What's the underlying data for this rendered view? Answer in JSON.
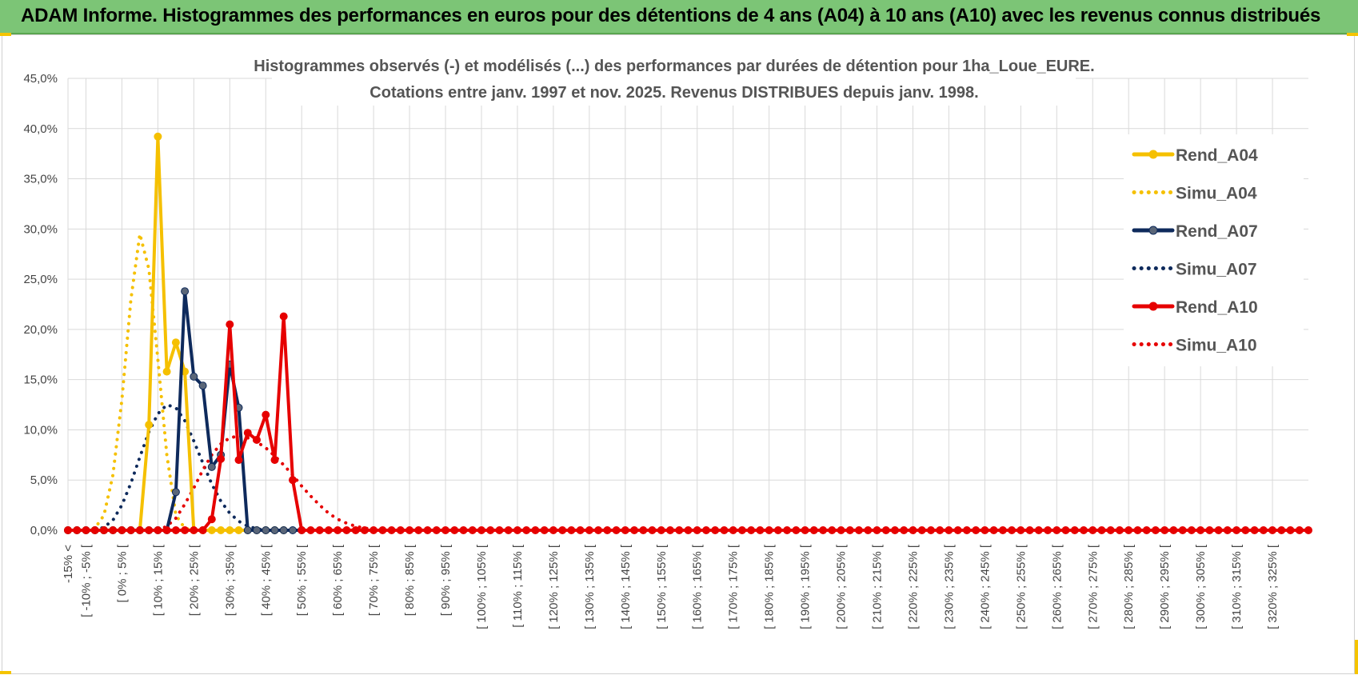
{
  "header": {
    "title": "ADAM Informe. Histogrammes des performances en euros pour des détentions de 4 ans (A04) à 10 ans (A10) avec les revenus connus distribués"
  },
  "chart_data": {
    "type": "line",
    "title_line1": "Histogrammes observés (-) et modélisés (...) des performances par durées de détention pour 1ha_Loue_EURE.",
    "title_line2": "Cotations entre janv. 1997 et nov. 2025. Revenus DISTRIBUES depuis janv. 1998.",
    "ylim": [
      0,
      45
    ],
    "yticks": [
      0,
      5,
      10,
      15,
      20,
      25,
      30,
      35,
      40,
      45
    ],
    "ytick_labels": [
      "0,0%",
      "5,0%",
      "10,0%",
      "15,0%",
      "20,0%",
      "25,0%",
      "30,0%",
      "35,0%",
      "40,0%",
      "45,0%"
    ],
    "x_positions": [
      -15,
      -12.5,
      -10,
      -7.5,
      -5,
      -2.5,
      0,
      2.5,
      5,
      7.5,
      10,
      12.5,
      15,
      17.5,
      20,
      22.5,
      25,
      27.5,
      30,
      32.5,
      35,
      37.5,
      40,
      42.5,
      45,
      47.5,
      50,
      52.5,
      55,
      57.5,
      60,
      62.5,
      65,
      67.5,
      70,
      72.5,
      75,
      77.5,
      80,
      82.5,
      85,
      87.5,
      90,
      92.5,
      95,
      97.5,
      100,
      102.5,
      105,
      107.5,
      110,
      112.5,
      115,
      117.5,
      120,
      122.5,
      125,
      127.5,
      130,
      132.5,
      135,
      137.5,
      140,
      142.5,
      145,
      147.5,
      150,
      152.5,
      155,
      157.5,
      160,
      162.5,
      165,
      167.5,
      170,
      172.5,
      175,
      177.5,
      180,
      182.5,
      185,
      187.5,
      190,
      192.5,
      195,
      197.5,
      200,
      202.5,
      205,
      207.5,
      210,
      212.5,
      215,
      217.5,
      220,
      222.5,
      225,
      227.5,
      230,
      232.5,
      235,
      237.5,
      240,
      242.5,
      245,
      247.5,
      250,
      252.5,
      255,
      257.5,
      260,
      262.5,
      265,
      267.5,
      270,
      272.5,
      275,
      277.5,
      280,
      282.5,
      285,
      287.5,
      290,
      292.5,
      295,
      297.5,
      300,
      302.5,
      305,
      307.5,
      310,
      312.5,
      315,
      317.5,
      320,
      322.5,
      325,
      327.5,
      330
    ],
    "x_labels": [
      "-15% <",
      "[ -10% ; -5% [",
      "[ 0% ; 5% [",
      "[ 10% ; 15% [",
      "[ 20% ; 25% [",
      "[ 30% ; 35% [",
      "[ 40% ; 45% [",
      "[ 50% ; 55% [",
      "[ 60% ; 65% [",
      "[ 70% ; 75% [",
      "[ 80% ; 85% [",
      "[ 90% ; 95% [",
      "[ 100% ; 105% [",
      "[ 110% ; 115% [",
      "[ 120% ; 125% [",
      "[ 130% ; 135% [",
      "[ 140% ; 145% [",
      "[ 150% ; 155% [",
      "[ 160% ; 165% [",
      "[ 170% ; 175% [",
      "[ 180% ; 185% [",
      "[ 190% ; 195% [",
      "[ 200% ; 205% [",
      "[ 210% ; 215% [",
      "[ 220% ; 225% [",
      "[ 230% ; 235% [",
      "[ 240% ; 245% [",
      "[ 250% ; 255% [",
      "[ 260% ; 265% [",
      "[ 270% ; 275% [",
      "[ 280% ; 285% [",
      "[ 290% ; 295% [",
      "[ 300% ; 305% [",
      "[ 310% ; 315% [",
      "[ 320% ; 325% ["
    ],
    "x_label_positions": [
      -15,
      -10,
      0,
      10,
      20,
      30,
      40,
      50,
      60,
      70,
      80,
      90,
      100,
      110,
      120,
      130,
      140,
      150,
      160,
      170,
      180,
      190,
      200,
      210,
      220,
      230,
      240,
      250,
      260,
      270,
      280,
      290,
      300,
      310,
      320
    ],
    "series": [
      {
        "name": "Rend_A04",
        "color": "#f5c000",
        "style": "solid",
        "marker": true,
        "points": [
          [
            -15,
            0
          ],
          [
            -12.5,
            0
          ],
          [
            -10,
            0
          ],
          [
            -7.5,
            0
          ],
          [
            -5,
            0
          ],
          [
            -2.5,
            0
          ],
          [
            0,
            0
          ],
          [
            2.5,
            0
          ],
          [
            5,
            0
          ],
          [
            7.5,
            10.5
          ],
          [
            10,
            39.2
          ],
          [
            12.5,
            15.8
          ],
          [
            15,
            18.7
          ],
          [
            17.5,
            15.8
          ],
          [
            20,
            0
          ],
          [
            22.5,
            0
          ],
          [
            25,
            0
          ],
          [
            27.5,
            0
          ],
          [
            30,
            0
          ],
          [
            32.5,
            0
          ],
          [
            35,
            0
          ],
          [
            37.5,
            0
          ],
          [
            40,
            0
          ],
          [
            42.5,
            0
          ],
          [
            45,
            0
          ]
        ]
      },
      {
        "name": "Simu_A04",
        "color": "#f5c000",
        "style": "dotted",
        "marker": false,
        "points": [
          [
            -10,
            0
          ],
          [
            -7.5,
            0.2
          ],
          [
            -5,
            1.5
          ],
          [
            -2.5,
            5.5
          ],
          [
            0,
            13
          ],
          [
            2.5,
            23
          ],
          [
            5,
            29.5
          ],
          [
            7.5,
            26
          ],
          [
            10,
            17
          ],
          [
            12.5,
            7.5
          ],
          [
            15,
            1.5
          ],
          [
            17.5,
            0.2
          ],
          [
            20,
            0
          ]
        ]
      },
      {
        "name": "Rend_A07",
        "color": "#0e2a5c",
        "style": "solid",
        "marker": true,
        "points": [
          [
            -15,
            0
          ],
          [
            -12.5,
            0
          ],
          [
            -10,
            0
          ],
          [
            -7.5,
            0
          ],
          [
            -5,
            0
          ],
          [
            -2.5,
            0
          ],
          [
            0,
            0
          ],
          [
            2.5,
            0
          ],
          [
            5,
            0
          ],
          [
            7.5,
            0
          ],
          [
            10,
            0
          ],
          [
            12.5,
            0
          ],
          [
            15,
            3.8
          ],
          [
            17.5,
            23.8
          ],
          [
            20,
            15.3
          ],
          [
            22.5,
            14.4
          ],
          [
            25,
            6.3
          ],
          [
            27.5,
            7.5
          ],
          [
            30,
            16.5
          ],
          [
            32.5,
            12.2
          ],
          [
            35,
            0
          ],
          [
            37.5,
            0
          ],
          [
            40,
            0
          ],
          [
            42.5,
            0
          ],
          [
            45,
            0
          ],
          [
            47.5,
            0
          ],
          [
            50,
            0
          ]
        ]
      },
      {
        "name": "Simu_A07",
        "color": "#0e2a5c",
        "style": "dotted",
        "marker": false,
        "points": [
          [
            -7.5,
            0
          ],
          [
            -5,
            0.3
          ],
          [
            -2.5,
            1.0
          ],
          [
            0,
            2.5
          ],
          [
            2.5,
            4.7
          ],
          [
            5,
            7.3
          ],
          [
            7.5,
            9.8
          ],
          [
            10,
            11.6
          ],
          [
            12.5,
            12.5
          ],
          [
            15,
            12.2
          ],
          [
            17.5,
            10.9
          ],
          [
            20,
            8.9
          ],
          [
            22.5,
            6.7
          ],
          [
            25,
            4.6
          ],
          [
            27.5,
            2.9
          ],
          [
            30,
            1.7
          ],
          [
            32.5,
            0.9
          ],
          [
            35,
            0.4
          ],
          [
            37.5,
            0.15
          ],
          [
            40,
            0
          ]
        ]
      },
      {
        "name": "Rend_A10",
        "color": "#e60000",
        "style": "solid",
        "marker": true,
        "points": [
          [
            -15,
            0
          ],
          [
            -12.5,
            0
          ],
          [
            -10,
            0
          ],
          [
            -7.5,
            0
          ],
          [
            -5,
            0
          ],
          [
            -2.5,
            0
          ],
          [
            0,
            0
          ],
          [
            2.5,
            0
          ],
          [
            5,
            0
          ],
          [
            7.5,
            0
          ],
          [
            10,
            0
          ],
          [
            12.5,
            0
          ],
          [
            15,
            0
          ],
          [
            17.5,
            0
          ],
          [
            20,
            0
          ],
          [
            22.5,
            0
          ],
          [
            25,
            1.1
          ],
          [
            27.5,
            7.1
          ],
          [
            30,
            20.5
          ],
          [
            32.5,
            7.0
          ],
          [
            35,
            9.7
          ],
          [
            37.5,
            9.0
          ],
          [
            40,
            11.5
          ],
          [
            42.5,
            7.0
          ],
          [
            45,
            21.3
          ],
          [
            47.5,
            5.0
          ],
          [
            50,
            0
          ],
          [
            52.5,
            0
          ],
          [
            55,
            0
          ],
          [
            57.5,
            0
          ],
          [
            60,
            0
          ],
          [
            62.5,
            0
          ],
          [
            65,
            0
          ],
          [
            67.5,
            0
          ],
          [
            70,
            0
          ],
          [
            72.5,
            0
          ],
          [
            75,
            0
          ],
          [
            77.5,
            0
          ],
          [
            80,
            0
          ],
          [
            82.5,
            0
          ],
          [
            85,
            0
          ],
          [
            87.5,
            0
          ],
          [
            90,
            0
          ],
          [
            92.5,
            0
          ],
          [
            95,
            0
          ],
          [
            97.5,
            0
          ],
          [
            100,
            0
          ],
          [
            102.5,
            0
          ],
          [
            105,
            0
          ],
          [
            107.5,
            0
          ],
          [
            110,
            0
          ],
          [
            112.5,
            0
          ],
          [
            115,
            0
          ],
          [
            117.5,
            0
          ],
          [
            120,
            0
          ],
          [
            122.5,
            0
          ],
          [
            125,
            0
          ],
          [
            127.5,
            0
          ],
          [
            130,
            0
          ],
          [
            132.5,
            0
          ],
          [
            135,
            0
          ],
          [
            137.5,
            0
          ],
          [
            140,
            0
          ],
          [
            142.5,
            0
          ],
          [
            145,
            0
          ],
          [
            147.5,
            0
          ],
          [
            150,
            0
          ],
          [
            152.5,
            0
          ],
          [
            155,
            0
          ],
          [
            157.5,
            0
          ],
          [
            160,
            0
          ],
          [
            162.5,
            0
          ],
          [
            165,
            0
          ],
          [
            167.5,
            0
          ],
          [
            170,
            0
          ],
          [
            172.5,
            0
          ],
          [
            175,
            0
          ],
          [
            177.5,
            0
          ],
          [
            180,
            0
          ],
          [
            182.5,
            0
          ],
          [
            185,
            0
          ],
          [
            187.5,
            0
          ],
          [
            190,
            0
          ],
          [
            192.5,
            0
          ],
          [
            195,
            0
          ],
          [
            197.5,
            0
          ],
          [
            200,
            0
          ],
          [
            202.5,
            0
          ],
          [
            205,
            0
          ],
          [
            207.5,
            0
          ],
          [
            210,
            0
          ],
          [
            212.5,
            0
          ],
          [
            215,
            0
          ],
          [
            217.5,
            0
          ],
          [
            220,
            0
          ],
          [
            222.5,
            0
          ],
          [
            225,
            0
          ],
          [
            227.5,
            0
          ],
          [
            230,
            0
          ],
          [
            232.5,
            0
          ],
          [
            235,
            0
          ],
          [
            237.5,
            0
          ],
          [
            240,
            0
          ],
          [
            242.5,
            0
          ],
          [
            245,
            0
          ],
          [
            247.5,
            0
          ],
          [
            250,
            0
          ],
          [
            252.5,
            0
          ],
          [
            255,
            0
          ],
          [
            257.5,
            0
          ],
          [
            260,
            0
          ],
          [
            262.5,
            0
          ],
          [
            265,
            0
          ],
          [
            267.5,
            0
          ],
          [
            270,
            0
          ],
          [
            272.5,
            0
          ],
          [
            275,
            0
          ],
          [
            277.5,
            0
          ],
          [
            280,
            0
          ],
          [
            282.5,
            0
          ],
          [
            285,
            0
          ],
          [
            287.5,
            0
          ],
          [
            290,
            0
          ],
          [
            292.5,
            0
          ],
          [
            295,
            0
          ],
          [
            297.5,
            0
          ],
          [
            300,
            0
          ],
          [
            302.5,
            0
          ],
          [
            305,
            0
          ],
          [
            307.5,
            0
          ],
          [
            310,
            0
          ],
          [
            312.5,
            0
          ],
          [
            315,
            0
          ],
          [
            317.5,
            0
          ],
          [
            320,
            0
          ],
          [
            322.5,
            0
          ],
          [
            325,
            0
          ],
          [
            327.5,
            0
          ],
          [
            330,
            0
          ]
        ]
      },
      {
        "name": "Simu_A10",
        "color": "#e60000",
        "style": "dotted",
        "marker": false,
        "points": [
          [
            10,
            0
          ],
          [
            12.5,
            0.4
          ],
          [
            15,
            1.2
          ],
          [
            17.5,
            2.6
          ],
          [
            20,
            4.2
          ],
          [
            22.5,
            6.0
          ],
          [
            25,
            7.5
          ],
          [
            27.5,
            8.6
          ],
          [
            30,
            9.2
          ],
          [
            32.5,
            9.4
          ],
          [
            35,
            9.2
          ],
          [
            37.5,
            8.8
          ],
          [
            40,
            8.2
          ],
          [
            42.5,
            7.4
          ],
          [
            45,
            6.5
          ],
          [
            47.5,
            5.5
          ],
          [
            50,
            4.4
          ],
          [
            52.5,
            3.4
          ],
          [
            55,
            2.5
          ],
          [
            57.5,
            1.7
          ],
          [
            60,
            1.1
          ],
          [
            62.5,
            0.7
          ],
          [
            65,
            0.4
          ],
          [
            67.5,
            0.2
          ],
          [
            70,
            0.1
          ],
          [
            72.5,
            0
          ]
        ]
      }
    ],
    "legend": [
      "Rend_A04",
      "Simu_A04",
      "Rend_A07",
      "Simu_A07",
      "Rend_A10",
      "Simu_A10"
    ],
    "legend_position": "right"
  }
}
